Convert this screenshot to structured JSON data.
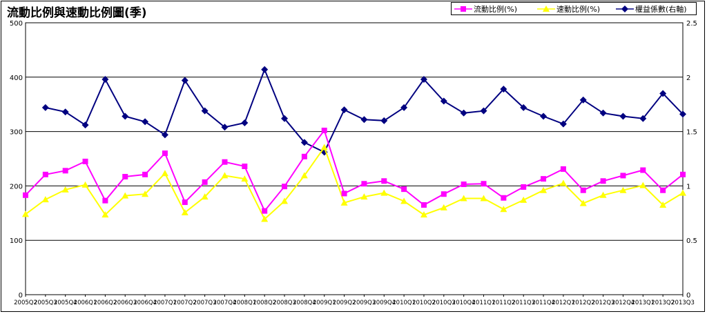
{
  "title": "流動比例與速動比例圖(季)",
  "colors": {
    "current": "#ff00ff",
    "quick": "#ffff00",
    "equity": "#000080",
    "grid": "#000000"
  },
  "chart_data": {
    "type": "line",
    "title": "流動比例與速動比例圖(季)",
    "grid": true,
    "legend_position": "top-right",
    "categories": [
      "2005Q2",
      "2005Q3",
      "2005Q4",
      "2006Q1",
      "2006Q2",
      "2006Q3",
      "2006Q4",
      "2007Q1",
      "2007Q2",
      "2007Q3",
      "2007Q4",
      "2008Q1",
      "2008Q2",
      "2008Q3",
      "2008Q4",
      "2009Q1",
      "2009Q2",
      "2009Q3",
      "2009Q4",
      "2010Q1",
      "2010Q2",
      "2010Q3",
      "2010Q4",
      "2011Q1",
      "2011Q2",
      "2011Q3",
      "2011Q4",
      "2012Q1",
      "2012Q2",
      "2012Q3",
      "2012Q4",
      "2013Q1",
      "2013Q2",
      "2013Q3"
    ],
    "y_left": {
      "ylim": [
        0,
        500
      ],
      "ticks": [
        "0",
        "100",
        "200",
        "300",
        "400",
        "500"
      ]
    },
    "y_right": {
      "ylim": [
        0,
        2.5
      ],
      "ticks": [
        "0",
        "0.5",
        "1",
        "1.5",
        "2",
        "2.5"
      ]
    },
    "series": [
      {
        "name": "流動比例(%)",
        "axis": "left",
        "marker": "square",
        "color": "#ff00ff",
        "values": [
          183,
          221,
          228,
          245,
          173,
          217,
          221,
          260,
          170,
          207,
          244,
          236,
          154,
          199,
          254,
          302,
          186,
          204,
          209,
          194,
          165,
          185,
          203,
          204,
          178,
          198,
          213,
          231,
          192,
          209,
          219,
          229,
          192,
          221
        ]
      },
      {
        "name": "速動比例(%)",
        "axis": "left",
        "marker": "triangle",
        "color": "#ffff00",
        "values": [
          148,
          175,
          193,
          202,
          147,
          182,
          185,
          223,
          151,
          180,
          219,
          213,
          139,
          172,
          219,
          271,
          169,
          180,
          187,
          172,
          147,
          160,
          177,
          177,
          157,
          174,
          192,
          205,
          168,
          183,
          192,
          201,
          165,
          187
        ]
      },
      {
        "name": "權益係數(右軸)",
        "axis": "right",
        "marker": "diamond",
        "color": "#000080",
        "values": [
          null,
          1.72,
          1.68,
          1.56,
          1.98,
          1.64,
          1.59,
          1.47,
          1.97,
          1.69,
          1.54,
          1.58,
          2.07,
          1.62,
          1.4,
          1.31,
          1.7,
          1.61,
          1.6,
          1.72,
          1.98,
          1.78,
          1.67,
          1.69,
          1.89,
          1.72,
          1.64,
          1.57,
          1.79,
          1.67,
          1.64,
          1.62,
          1.85,
          1.66
        ]
      }
    ]
  }
}
